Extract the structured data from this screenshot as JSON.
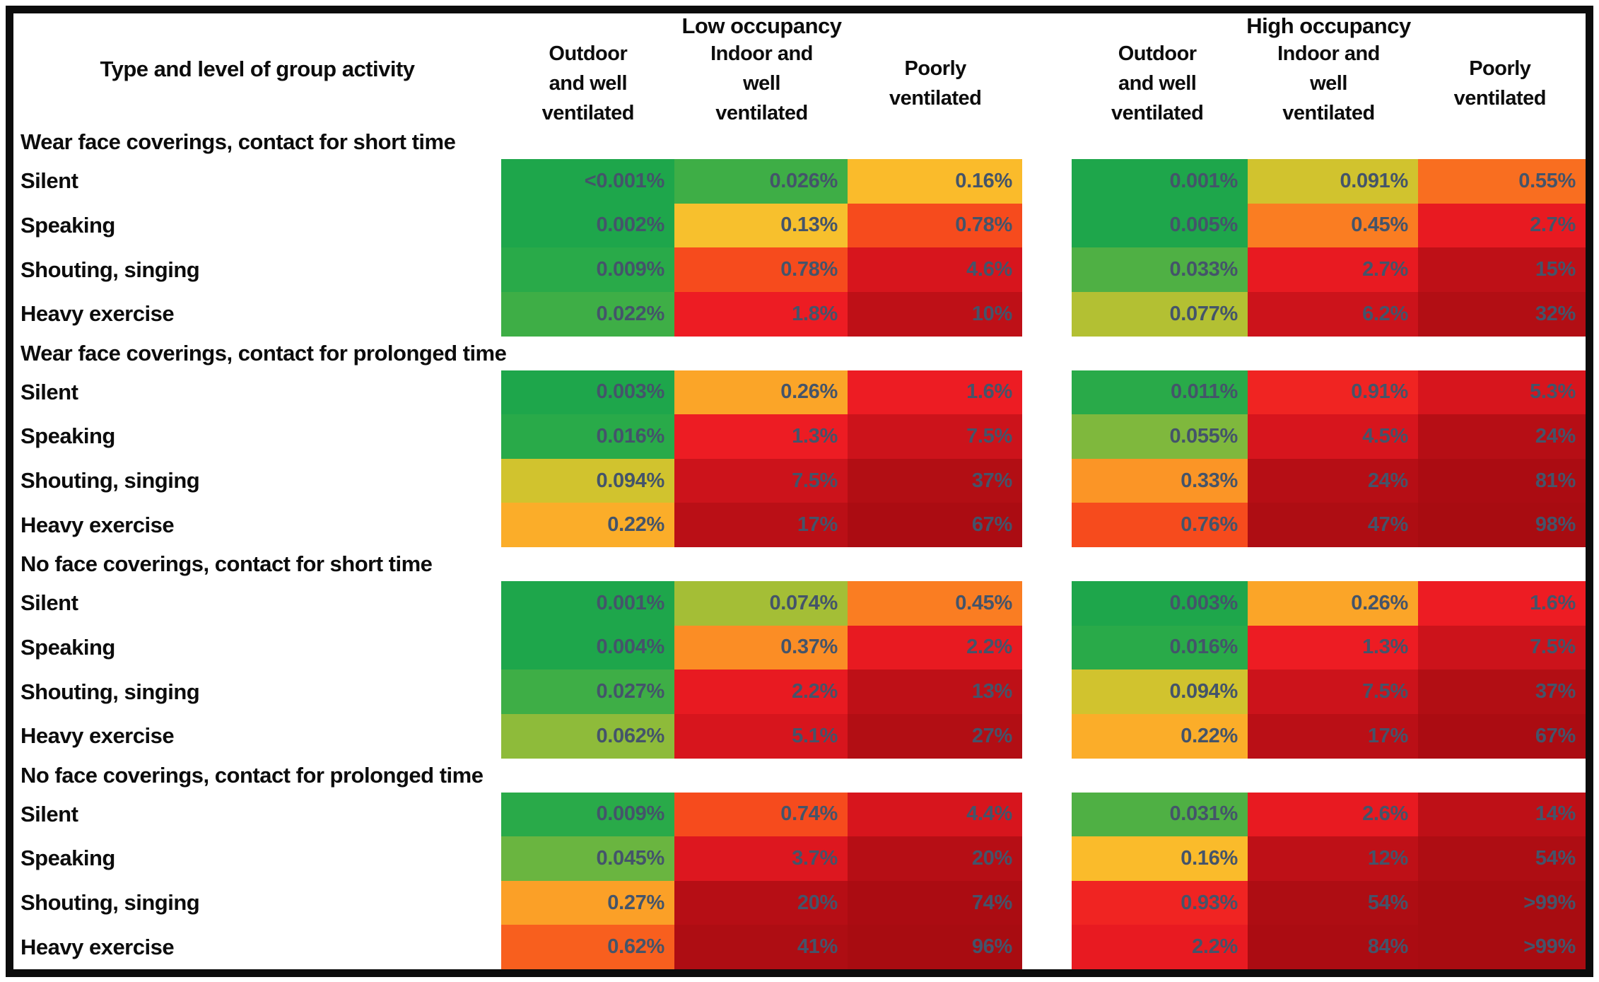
{
  "chart_data": {
    "type": "heatmap",
    "title": "",
    "corner_header": "Type and level of group activity",
    "groups": [
      "Low occupancy",
      "High occupancy"
    ],
    "columns": [
      "Outdoor\nand well\nventilated",
      "Indoor and\nwell\nventilated",
      "Poorly\nventilated"
    ],
    "value_unit": "% risk",
    "text_colors": {
      "labels": "#0c0c0c",
      "values": "#44546A"
    },
    "frame_border_color": "#0c0c0c",
    "sections": [
      {
        "title": "Wear face coverings, contact for short time",
        "rows": [
          {
            "label": "Silent",
            "low": [
              {
                "v": "<0.001%",
                "c": "#1EA64B"
              },
              {
                "v": "0.026%",
                "c": "#3EAE46"
              },
              {
                "v": "0.16%",
                "c": "#FABB2B"
              }
            ],
            "high": [
              {
                "v": "0.001%",
                "c": "#1EA64B"
              },
              {
                "v": "0.091%",
                "c": "#D1C32E"
              },
              {
                "v": "0.55%",
                "c": "#F96E20"
              }
            ]
          },
          {
            "label": "Speaking",
            "low": [
              {
                "v": "0.002%",
                "c": "#1EA64B"
              },
              {
                "v": "0.13%",
                "c": "#F7C02D"
              },
              {
                "v": "0.78%",
                "c": "#F64B1D"
              }
            ],
            "high": [
              {
                "v": "0.005%",
                "c": "#1EA64B"
              },
              {
                "v": "0.45%",
                "c": "#FA7D22"
              },
              {
                "v": "2.7%",
                "c": "#E81A21"
              }
            ]
          },
          {
            "label": "Shouting, singing",
            "low": [
              {
                "v": "0.009%",
                "c": "#29AA49"
              },
              {
                "v": "0.78%",
                "c": "#F64B1D"
              },
              {
                "v": "4.6%",
                "c": "#D7151D"
              }
            ],
            "high": [
              {
                "v": "0.033%",
                "c": "#4FB044"
              },
              {
                "v": "2.7%",
                "c": "#E81A21"
              },
              {
                "v": "15%",
                "c": "#BE1017"
              }
            ]
          },
          {
            "label": "Heavy exercise",
            "low": [
              {
                "v": "0.022%",
                "c": "#3EAE46"
              },
              {
                "v": "1.8%",
                "c": "#ED1C23"
              },
              {
                "v": "10%",
                "c": "#BE1017"
              }
            ],
            "high": [
              {
                "v": "0.077%",
                "c": "#B3C033"
              },
              {
                "v": "6.2%",
                "c": "#CC131B"
              },
              {
                "v": "32%",
                "c": "#B20E14"
              }
            ]
          }
        ]
      },
      {
        "title": "Wear face coverings, contact for prolonged time",
        "rows": [
          {
            "label": "Silent",
            "low": [
              {
                "v": "0.003%",
                "c": "#1EA64B"
              },
              {
                "v": "0.26%",
                "c": "#FBA528"
              },
              {
                "v": "1.6%",
                "c": "#ED1C23"
              }
            ],
            "high": [
              {
                "v": "0.011%",
                "c": "#29AA49"
              },
              {
                "v": "0.91%",
                "c": "#F02422"
              },
              {
                "v": "5.3%",
                "c": "#D7151D"
              }
            ]
          },
          {
            "label": "Speaking",
            "low": [
              {
                "v": "0.016%",
                "c": "#29AA49"
              },
              {
                "v": "1.3%",
                "c": "#ED1C23"
              },
              {
                "v": "7.5%",
                "c": "#CC131B"
              }
            ],
            "high": [
              {
                "v": "0.055%",
                "c": "#7FB83D"
              },
              {
                "v": "4.5%",
                "c": "#D7151D"
              },
              {
                "v": "24%",
                "c": "#B60E15"
              }
            ]
          },
          {
            "label": "Shouting, singing",
            "low": [
              {
                "v": "0.094%",
                "c": "#D1C32E"
              },
              {
                "v": "7.5%",
                "c": "#CC131B"
              },
              {
                "v": "37%",
                "c": "#B20E14"
              }
            ],
            "high": [
              {
                "v": "0.33%",
                "c": "#FB9526"
              },
              {
                "v": "24%",
                "c": "#B60E15"
              },
              {
                "v": "81%",
                "c": "#AB0C12"
              }
            ]
          },
          {
            "label": "Heavy exercise",
            "low": [
              {
                "v": "0.22%",
                "c": "#FBAD29"
              },
              {
                "v": "17%",
                "c": "#BA0F16"
              },
              {
                "v": "67%",
                "c": "#AB0C12"
              }
            ],
            "high": [
              {
                "v": "0.76%",
                "c": "#F64B1D"
              },
              {
                "v": "47%",
                "c": "#AE0D13"
              },
              {
                "v": "98%",
                "c": "#A80C11"
              }
            ]
          }
        ]
      },
      {
        "title": "No face coverings, contact for short time",
        "rows": [
          {
            "label": "Silent",
            "low": [
              {
                "v": "0.001%",
                "c": "#1EA64B"
              },
              {
                "v": "0.074%",
                "c": "#A4BE36"
              },
              {
                "v": "0.45%",
                "c": "#FA7D22"
              }
            ],
            "high": [
              {
                "v": "0.003%",
                "c": "#1EA64B"
              },
              {
                "v": "0.26%",
                "c": "#FBA528"
              },
              {
                "v": "1.6%",
                "c": "#ED1C23"
              }
            ]
          },
          {
            "label": "Speaking",
            "low": [
              {
                "v": "0.004%",
                "c": "#1EA64B"
              },
              {
                "v": "0.37%",
                "c": "#FB8D25"
              },
              {
                "v": "2.2%",
                "c": "#E81A21"
              }
            ],
            "high": [
              {
                "v": "0.016%",
                "c": "#29AA49"
              },
              {
                "v": "1.3%",
                "c": "#ED1C23"
              },
              {
                "v": "7.5%",
                "c": "#CC131B"
              }
            ]
          },
          {
            "label": "Shouting, singing",
            "low": [
              {
                "v": "0.027%",
                "c": "#3EAE46"
              },
              {
                "v": "2.2%",
                "c": "#E81A21"
              },
              {
                "v": "13%",
                "c": "#BE1017"
              }
            ],
            "high": [
              {
                "v": "0.094%",
                "c": "#D1C32E"
              },
              {
                "v": "7.5%",
                "c": "#CC131B"
              },
              {
                "v": "37%",
                "c": "#B20E14"
              }
            ]
          },
          {
            "label": "Heavy exercise",
            "low": [
              {
                "v": "0.062%",
                "c": "#8EBB3A"
              },
              {
                "v": "5.1%",
                "c": "#D7151D"
              },
              {
                "v": "27%",
                "c": "#B20E14"
              }
            ],
            "high": [
              {
                "v": "0.22%",
                "c": "#FBAD29"
              },
              {
                "v": "17%",
                "c": "#BA0F16"
              },
              {
                "v": "67%",
                "c": "#AB0C12"
              }
            ]
          }
        ]
      },
      {
        "title": "No face coverings, contact for prolonged time",
        "rows": [
          {
            "label": "Silent",
            "low": [
              {
                "v": "0.009%",
                "c": "#29AA49"
              },
              {
                "v": "0.74%",
                "c": "#F64B1D"
              },
              {
                "v": "4.4%",
                "c": "#D7151D"
              }
            ],
            "high": [
              {
                "v": "0.031%",
                "c": "#4FB044"
              },
              {
                "v": "2.6%",
                "c": "#E81A21"
              },
              {
                "v": "14%",
                "c": "#BE1017"
              }
            ]
          },
          {
            "label": "Speaking",
            "low": [
              {
                "v": "0.045%",
                "c": "#6AB540"
              },
              {
                "v": "3.7%",
                "c": "#DD171F"
              },
              {
                "v": "20%",
                "c": "#B60E15"
              }
            ],
            "high": [
              {
                "v": "0.16%",
                "c": "#FABB2B"
              },
              {
                "v": "12%",
                "c": "#BE1017"
              },
              {
                "v": "54%",
                "c": "#AE0D13"
              }
            ]
          },
          {
            "label": "Shouting, singing",
            "low": [
              {
                "v": "0.27%",
                "c": "#FBA027"
              },
              {
                "v": "20%",
                "c": "#B60E15"
              },
              {
                "v": "74%",
                "c": "#AB0C12"
              }
            ],
            "high": [
              {
                "v": "0.93%",
                "c": "#F02422"
              },
              {
                "v": "54%",
                "c": "#AE0D13"
              },
              {
                "v": ">99%",
                "c": "#A80C11"
              }
            ]
          },
          {
            "label": "Heavy exercise",
            "low": [
              {
                "v": "0.62%",
                "c": "#F85F1E"
              },
              {
                "v": "41%",
                "c": "#AE0D13"
              },
              {
                "v": "96%",
                "c": "#A80C11"
              }
            ],
            "high": [
              {
                "v": "2.2%",
                "c": "#E81A21"
              },
              {
                "v": "84%",
                "c": "#AB0C12"
              },
              {
                "v": ">99%",
                "c": "#A80C11"
              }
            ]
          }
        ]
      }
    ]
  }
}
